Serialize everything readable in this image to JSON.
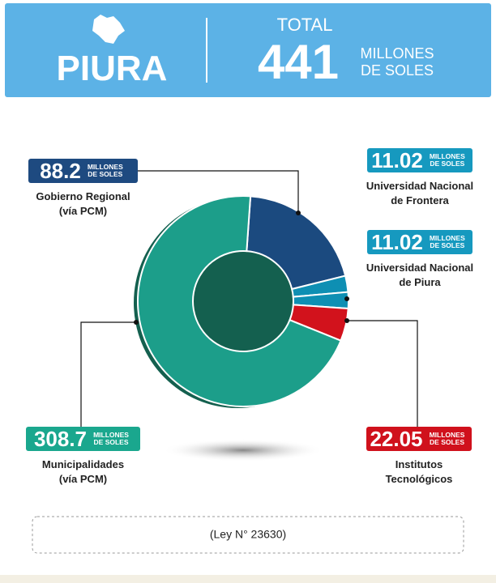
{
  "header": {
    "region": "PIURA",
    "total_label": "TOTAL"
  },
  "chart_data": {
    "type": "pie",
    "donut": true,
    "total": 441,
    "unit": "MILLONES DE SOLES",
    "categories": [
      "Gobierno Regional\n(vía PCM)",
      "Universidad Nacional\nde Frontera",
      "Universidad Nacional\nde Piura",
      "Institutos\nTecnológicos",
      "Municipalidades\n(vía PCM)"
    ],
    "values": [
      88.2,
      11.02,
      11.02,
      22.05,
      308.7
    ],
    "colors": [
      "#1b4a7f",
      "#0e8fb3",
      "#0e8fb3",
      "#d2121c",
      "#1c9e8a"
    ],
    "label_colors": [
      "#1e4a80",
      "#1699bf",
      "#1699bf",
      "#d0111c",
      "#1aa78e"
    ]
  },
  "footer": "(Ley N° 23630)"
}
